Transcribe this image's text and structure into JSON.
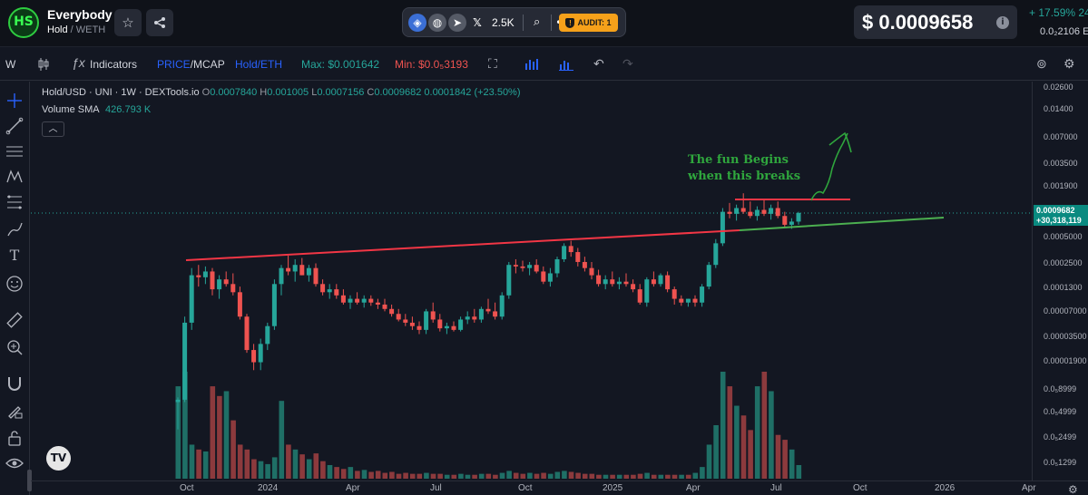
{
  "header": {
    "logo_text": "HS",
    "token_name": "Everybody",
    "pair_base": "Hold",
    "pair_quote": "WETH",
    "social_count": "2.5K",
    "audit_label": "AUDIT: 1",
    "price": "$ 0.0009658",
    "price_change": "+ 17.59%  24",
    "price_eth": "0.0₂2106  E"
  },
  "toolbar": {
    "interval": "W",
    "indicators": "Indicators",
    "price_mode_a": "PRICE",
    "price_mode_b": "/MCAP",
    "pair_mode": "Hold/ETH",
    "max": "Max: $0.001642",
    "min": "Min: $0.0₅3193"
  },
  "legend": {
    "symbol": "Hold/USD · UNI · 1W · DEXTools.io",
    "o_label": "O",
    "o": "0.0007840",
    "h_label": "H",
    "h": "0.001005",
    "l_label": "L",
    "l": "0.0007156",
    "c_label": "C",
    "c": "0.0009682",
    "change": "0.0001842 (+23.50%)",
    "vol_label": "Volume SMA",
    "vol_value": "426.793 K"
  },
  "annotation": {
    "line1": "The fun Begins",
    "line2": "when this breaks"
  },
  "price_scale": {
    "ticks": [
      "0.02600",
      "0.01400",
      "0.007000",
      "0.003500",
      "0.001900",
      "0.0005000",
      "0.0002500",
      "0.0001300",
      "0.00007000",
      "0.00003500",
      "0.00001900",
      "0.0₅8999",
      "0.0₅4999",
      "0.0₅2499",
      "0.0₅1299"
    ],
    "last_price": "0.0009682",
    "last_mcap": "+30,318,119"
  },
  "time_scale": {
    "ticks": [
      "Oct",
      "2024",
      "Apr",
      "Jul",
      "Oct",
      "2025",
      "Apr",
      "Jul",
      "Oct",
      "2026",
      "Apr"
    ]
  },
  "colors": {
    "up": "#26a69a",
    "down": "#ef5350",
    "resistance": "#f23645",
    "support": "#4caf50",
    "arrow": "#2fa63d"
  },
  "chart_data": {
    "type": "candlestick",
    "title": "Hold/USD · UNI · 1W · DEXTools.io",
    "scale": "log",
    "ylim": [
      1.2e-06,
      0.026
    ],
    "candles": [
      {
        "o": 8e-06,
        "h": 9e-06,
        "l": 4e-06,
        "c": 8.5e-06
      },
      {
        "o": 8.5e-06,
        "h": 7e-05,
        "l": 8e-06,
        "c": 6e-05
      },
      {
        "o": 6e-05,
        "h": 0.00024,
        "l": 5e-05,
        "c": 0.0002
      },
      {
        "o": 0.0002,
        "h": 0.00026,
        "l": 0.00015,
        "c": 0.00019
      },
      {
        "o": 0.00019,
        "h": 0.00025,
        "l": 0.00016,
        "c": 0.00022
      },
      {
        "o": 0.00022,
        "h": 0.00024,
        "l": 0.00012,
        "c": 0.00014
      },
      {
        "o": 0.00014,
        "h": 0.0002,
        "l": 0.00011,
        "c": 0.00018
      },
      {
        "o": 0.00018,
        "h": 0.00022,
        "l": 0.00015,
        "c": 0.00016
      },
      {
        "o": 0.00016,
        "h": 0.00021,
        "l": 0.00012,
        "c": 0.00013
      },
      {
        "o": 0.00013,
        "h": 0.00015,
        "l": 6.5e-05,
        "c": 7e-05
      },
      {
        "o": 7e-05,
        "h": 7.5e-05,
        "l": 2.8e-05,
        "c": 3e-05
      },
      {
        "o": 3e-05,
        "h": 3.5e-05,
        "l": 1.8e-05,
        "c": 2.2e-05
      },
      {
        "o": 2.2e-05,
        "h": 4e-05,
        "l": 1.8e-05,
        "c": 3.5e-05
      },
      {
        "o": 3.5e-05,
        "h": 6e-05,
        "l": 3e-05,
        "c": 5.5e-05
      },
      {
        "o": 5.5e-05,
        "h": 0.00018,
        "l": 5e-05,
        "c": 0.00016
      },
      {
        "o": 0.00016,
        "h": 0.00026,
        "l": 0.00012,
        "c": 0.00024
      },
      {
        "o": 0.00024,
        "h": 0.00033,
        "l": 0.0002,
        "c": 0.00022
      },
      {
        "o": 0.00022,
        "h": 0.0003,
        "l": 0.00017,
        "c": 0.00026
      },
      {
        "o": 0.00026,
        "h": 0.00031,
        "l": 0.0002,
        "c": 0.0002
      },
      {
        "o": 0.0002,
        "h": 0.00026,
        "l": 0.00017,
        "c": 0.00024
      },
      {
        "o": 0.00024,
        "h": 0.00027,
        "l": 0.00015,
        "c": 0.00016
      },
      {
        "o": 0.00016,
        "h": 0.00018,
        "l": 0.00012,
        "c": 0.00013
      },
      {
        "o": 0.00013,
        "h": 0.00016,
        "l": 0.00011,
        "c": 0.00014
      },
      {
        "o": 0.00014,
        "h": 0.00016,
        "l": 0.00011,
        "c": 0.00012
      },
      {
        "o": 0.00012,
        "h": 0.00014,
        "l": 9.5e-05,
        "c": 0.0001
      },
      {
        "o": 0.0001,
        "h": 0.00012,
        "l": 8.5e-05,
        "c": 0.00011
      },
      {
        "o": 0.00011,
        "h": 0.00013,
        "l": 9.5e-05,
        "c": 0.0001
      },
      {
        "o": 0.0001,
        "h": 0.00012,
        "l": 8.8e-05,
        "c": 0.00011
      },
      {
        "o": 0.00011,
        "h": 0.00012,
        "l": 9.2e-05,
        "c": 0.0001
      },
      {
        "o": 0.0001,
        "h": 0.00011,
        "l": 8.5e-05,
        "c": 9.5e-05
      },
      {
        "o": 9.5e-05,
        "h": 0.00011,
        "l": 8e-05,
        "c": 8.5e-05
      },
      {
        "o": 8.5e-05,
        "h": 9.5e-05,
        "l": 7e-05,
        "c": 7.5e-05
      },
      {
        "o": 7.5e-05,
        "h": 8.5e-05,
        "l": 6.2e-05,
        "c": 6.5e-05
      },
      {
        "o": 6.5e-05,
        "h": 7.5e-05,
        "l": 5.5e-05,
        "c": 6e-05
      },
      {
        "o": 6e-05,
        "h": 7e-05,
        "l": 5e-05,
        "c": 5.5e-05
      },
      {
        "o": 5.5e-05,
        "h": 6.2e-05,
        "l": 4.5e-05,
        "c": 5e-05
      },
      {
        "o": 5e-05,
        "h": 8.5e-05,
        "l": 4.5e-05,
        "c": 8e-05
      },
      {
        "o": 8e-05,
        "h": 0.0001,
        "l": 6e-05,
        "c": 6.5e-05
      },
      {
        "o": 6.5e-05,
        "h": 7.5e-05,
        "l": 4.8e-05,
        "c": 5.2e-05
      },
      {
        "o": 5.2e-05,
        "h": 6e-05,
        "l": 4.5e-05,
        "c": 5.5e-05
      },
      {
        "o": 5.5e-05,
        "h": 6.2e-05,
        "l": 4.8e-05,
        "c": 5e-05
      },
      {
        "o": 5e-05,
        "h": 7e-05,
        "l": 4.8e-05,
        "c": 6.5e-05
      },
      {
        "o": 6.5e-05,
        "h": 8e-05,
        "l": 5.8e-05,
        "c": 7e-05
      },
      {
        "o": 7e-05,
        "h": 8.5e-05,
        "l": 6e-05,
        "c": 6.5e-05
      },
      {
        "o": 6.5e-05,
        "h": 9e-05,
        "l": 6e-05,
        "c": 8.5e-05
      },
      {
        "o": 8.5e-05,
        "h": 0.00011,
        "l": 7.5e-05,
        "c": 8e-05
      },
      {
        "o": 8e-05,
        "h": 0.0001,
        "l": 6.5e-05,
        "c": 7e-05
      },
      {
        "o": 7e-05,
        "h": 0.00013,
        "l": 6.5e-05,
        "c": 0.00012
      },
      {
        "o": 0.00012,
        "h": 0.00028,
        "l": 0.00011,
        "c": 0.00026
      },
      {
        "o": 0.00026,
        "h": 0.0003,
        "l": 0.00021,
        "c": 0.00025
      },
      {
        "o": 0.00025,
        "h": 0.00029,
        "l": 0.00022,
        "c": 0.00024
      },
      {
        "o": 0.00024,
        "h": 0.00028,
        "l": 0.0002,
        "c": 0.00026
      },
      {
        "o": 0.00026,
        "h": 0.0003,
        "l": 0.00021,
        "c": 0.00022
      },
      {
        "o": 0.00022,
        "h": 0.00025,
        "l": 0.00016,
        "c": 0.00017
      },
      {
        "o": 0.00017,
        "h": 0.00024,
        "l": 0.00015,
        "c": 0.00021
      },
      {
        "o": 0.00021,
        "h": 0.00032,
        "l": 0.00019,
        "c": 0.0003
      },
      {
        "o": 0.0003,
        "h": 0.00045,
        "l": 0.00028,
        "c": 0.00042
      },
      {
        "o": 0.00042,
        "h": 0.00048,
        "l": 0.00032,
        "c": 0.00036
      },
      {
        "o": 0.00036,
        "h": 0.0004,
        "l": 0.00025,
        "c": 0.00028
      },
      {
        "o": 0.00028,
        "h": 0.00032,
        "l": 0.00022,
        "c": 0.00024
      },
      {
        "o": 0.00024,
        "h": 0.00028,
        "l": 0.00018,
        "c": 0.0002
      },
      {
        "o": 0.0002,
        "h": 0.00023,
        "l": 0.00015,
        "c": 0.00016
      },
      {
        "o": 0.00016,
        "h": 0.0002,
        "l": 0.00014,
        "c": 0.00018
      },
      {
        "o": 0.00018,
        "h": 0.00022,
        "l": 0.00015,
        "c": 0.00016
      },
      {
        "o": 0.00016,
        "h": 0.00019,
        "l": 0.00014,
        "c": 0.00017
      },
      {
        "o": 0.00017,
        "h": 0.00021,
        "l": 0.00015,
        "c": 0.00016
      },
      {
        "o": 0.00016,
        "h": 0.00018,
        "l": 0.00013,
        "c": 0.00014
      },
      {
        "o": 0.00014,
        "h": 0.00016,
        "l": 9.5e-05,
        "c": 0.0001
      },
      {
        "o": 0.0001,
        "h": 0.00019,
        "l": 9e-05,
        "c": 0.00018
      },
      {
        "o": 0.00018,
        "h": 0.00022,
        "l": 0.00015,
        "c": 0.00016
      },
      {
        "o": 0.00016,
        "h": 0.00021,
        "l": 0.00015,
        "c": 0.0002
      },
      {
        "o": 0.0002,
        "h": 0.00022,
        "l": 0.00013,
        "c": 0.00014
      },
      {
        "o": 0.00014,
        "h": 0.00015,
        "l": 9.5e-05,
        "c": 0.00011
      },
      {
        "o": 0.00011,
        "h": 0.00012,
        "l": 9.2e-05,
        "c": 0.0001
      },
      {
        "o": 0.0001,
        "h": 0.00011,
        "l": 9e-05,
        "c": 0.00011
      },
      {
        "o": 0.00011,
        "h": 0.00012,
        "l": 9e-05,
        "c": 0.0001
      },
      {
        "o": 0.0001,
        "h": 0.00016,
        "l": 9e-05,
        "c": 0.00015
      },
      {
        "o": 0.00015,
        "h": 0.00028,
        "l": 0.00014,
        "c": 0.00026
      },
      {
        "o": 0.00026,
        "h": 0.0005,
        "l": 0.00024,
        "c": 0.00045
      },
      {
        "o": 0.00045,
        "h": 0.0011,
        "l": 0.00042,
        "c": 0.001
      },
      {
        "o": 0.001,
        "h": 0.00125,
        "l": 0.00085,
        "c": 0.00095
      },
      {
        "o": 0.00095,
        "h": 0.0012,
        "l": 0.0008,
        "c": 0.0011
      },
      {
        "o": 0.0011,
        "h": 0.0016,
        "l": 0.00095,
        "c": 0.001
      },
      {
        "o": 0.001,
        "h": 0.0013,
        "l": 0.00085,
        "c": 0.0009
      },
      {
        "o": 0.0009,
        "h": 0.00115,
        "l": 0.0008,
        "c": 0.00105
      },
      {
        "o": 0.00105,
        "h": 0.0014,
        "l": 0.0009,
        "c": 0.00095
      },
      {
        "o": 0.00095,
        "h": 0.0012,
        "l": 0.00082,
        "c": 0.0011
      },
      {
        "o": 0.0011,
        "h": 0.0013,
        "l": 0.00085,
        "c": 0.0009
      },
      {
        "o": 0.0009,
        "h": 0.001,
        "l": 0.00068,
        "c": 0.00072
      },
      {
        "o": 0.00072,
        "h": 0.00085,
        "l": 0.00065,
        "c": 0.00078
      },
      {
        "o": 0.00078,
        "h": 0.001,
        "l": 0.00072,
        "c": 0.00097
      }
    ],
    "volume": [
      {
        "v": 95,
        "up": true
      },
      {
        "v": 110,
        "up": true
      },
      {
        "v": 35,
        "up": true
      },
      {
        "v": 30,
        "up": false
      },
      {
        "v": 28,
        "up": true
      },
      {
        "v": 95,
        "up": false
      },
      {
        "v": 85,
        "up": false
      },
      {
        "v": 90,
        "up": true
      },
      {
        "v": 60,
        "up": false
      },
      {
        "v": 35,
        "up": false
      },
      {
        "v": 30,
        "up": false
      },
      {
        "v": 20,
        "up": false
      },
      {
        "v": 18,
        "up": true
      },
      {
        "v": 15,
        "up": true
      },
      {
        "v": 22,
        "up": true
      },
      {
        "v": 80,
        "up": true
      },
      {
        "v": 35,
        "up": false
      },
      {
        "v": 30,
        "up": true
      },
      {
        "v": 25,
        "up": false
      },
      {
        "v": 20,
        "up": true
      },
      {
        "v": 26,
        "up": false
      },
      {
        "v": 18,
        "up": false
      },
      {
        "v": 14,
        "up": true
      },
      {
        "v": 12,
        "up": false
      },
      {
        "v": 10,
        "up": false
      },
      {
        "v": 12,
        "up": true
      },
      {
        "v": 8,
        "up": false
      },
      {
        "v": 9,
        "up": true
      },
      {
        "v": 7,
        "up": false
      },
      {
        "v": 8,
        "up": false
      },
      {
        "v": 6,
        "up": false
      },
      {
        "v": 7,
        "up": false
      },
      {
        "v": 5,
        "up": false
      },
      {
        "v": 6,
        "up": false
      },
      {
        "v": 5,
        "up": false
      },
      {
        "v": 5,
        "up": false
      },
      {
        "v": 6,
        "up": true
      },
      {
        "v": 5,
        "up": false
      },
      {
        "v": 5,
        "up": false
      },
      {
        "v": 4,
        "up": true
      },
      {
        "v": 4,
        "up": false
      },
      {
        "v": 5,
        "up": true
      },
      {
        "v": 4,
        "up": true
      },
      {
        "v": 4,
        "up": false
      },
      {
        "v": 5,
        "up": true
      },
      {
        "v": 5,
        "up": false
      },
      {
        "v": 4,
        "up": false
      },
      {
        "v": 6,
        "up": true
      },
      {
        "v": 8,
        "up": true
      },
      {
        "v": 6,
        "up": false
      },
      {
        "v": 5,
        "up": false
      },
      {
        "v": 6,
        "up": true
      },
      {
        "v": 5,
        "up": false
      },
      {
        "v": 6,
        "up": false
      },
      {
        "v": 5,
        "up": true
      },
      {
        "v": 7,
        "up": true
      },
      {
        "v": 8,
        "up": true
      },
      {
        "v": 7,
        "up": false
      },
      {
        "v": 6,
        "up": false
      },
      {
        "v": 5,
        "up": false
      },
      {
        "v": 5,
        "up": false
      },
      {
        "v": 4,
        "up": false
      },
      {
        "v": 4,
        "up": true
      },
      {
        "v": 4,
        "up": false
      },
      {
        "v": 4,
        "up": true
      },
      {
        "v": 4,
        "up": false
      },
      {
        "v": 4,
        "up": false
      },
      {
        "v": 5,
        "up": false
      },
      {
        "v": 6,
        "up": true
      },
      {
        "v": 4,
        "up": false
      },
      {
        "v": 4,
        "up": true
      },
      {
        "v": 4,
        "up": false
      },
      {
        "v": 4,
        "up": false
      },
      {
        "v": 4,
        "up": true
      },
      {
        "v": 4,
        "up": false
      },
      {
        "v": 6,
        "up": true
      },
      {
        "v": 12,
        "up": true
      },
      {
        "v": 35,
        "up": true
      },
      {
        "v": 55,
        "up": true
      },
      {
        "v": 110,
        "up": true
      },
      {
        "v": 95,
        "up": false
      },
      {
        "v": 75,
        "up": true
      },
      {
        "v": 65,
        "up": false
      },
      {
        "v": 50,
        "up": false
      },
      {
        "v": 95,
        "up": true
      },
      {
        "v": 110,
        "up": false
      },
      {
        "v": 90,
        "up": true
      },
      {
        "v": 45,
        "up": false
      },
      {
        "v": 40,
        "up": false
      },
      {
        "v": 30,
        "up": true
      },
      {
        "v": 14,
        "up": true
      }
    ]
  }
}
